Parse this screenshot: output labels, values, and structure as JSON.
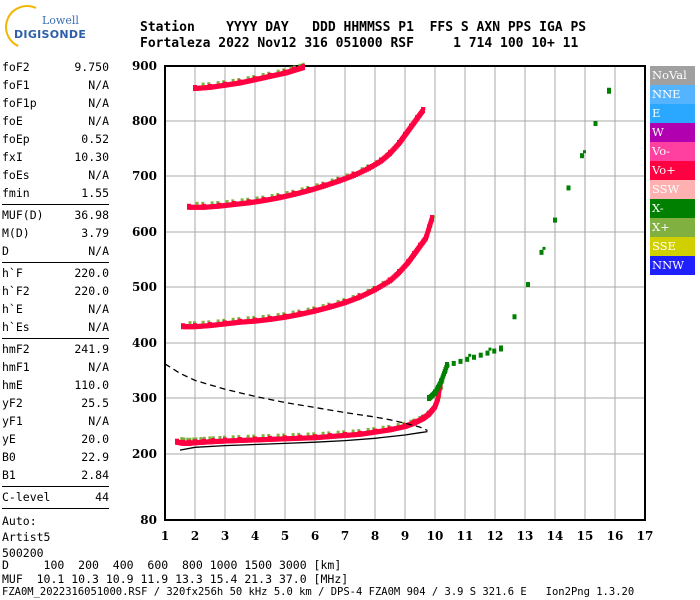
{
  "logo": {
    "line1": "Lowell",
    "line2": "DIGISONDE"
  },
  "header": {
    "labels": "Station    YYYY DAY   DDD HHMMSS P1  FFS S AXN PPS IGA PS",
    "values": "Fortaleza 2022 Nov12 316 051000 RSF     1 714 100 10+ 11"
  },
  "params_group1": [
    {
      "name": "foF2",
      "value": "9.750"
    },
    {
      "name": "foF1",
      "value": "N/A"
    },
    {
      "name": "foF1p",
      "value": "N/A"
    },
    {
      "name": "foE",
      "value": "N/A"
    },
    {
      "name": "foEp",
      "value": "0.52"
    },
    {
      "name": "fxI",
      "value": "10.30"
    },
    {
      "name": "foEs",
      "value": "N/A"
    },
    {
      "name": "fmin",
      "value": "1.55"
    }
  ],
  "params_group2": [
    {
      "name": "MUF(D)",
      "value": "36.98"
    },
    {
      "name": "M(D)",
      "value": "3.79"
    },
    {
      "name": "D",
      "value": "N/A"
    }
  ],
  "params_group3": [
    {
      "name": "h`F",
      "value": "220.0"
    },
    {
      "name": "h`F2",
      "value": "220.0"
    },
    {
      "name": "h`E",
      "value": "N/A"
    },
    {
      "name": "h`Es",
      "value": "N/A"
    }
  ],
  "params_group4": [
    {
      "name": "hmF2",
      "value": "241.9"
    },
    {
      "name": "hmF1",
      "value": "N/A"
    },
    {
      "name": "hmE",
      "value": "110.0"
    },
    {
      "name": "yF2",
      "value": "25.5"
    },
    {
      "name": "yF1",
      "value": "N/A"
    },
    {
      "name": "yE",
      "value": "20.0"
    },
    {
      "name": "B0",
      "value": "22.9"
    },
    {
      "name": "B1",
      "value": "2.84"
    }
  ],
  "params_group5": [
    {
      "name": "C-level",
      "value": "44"
    }
  ],
  "auto": {
    "line1": "Auto:",
    "line2": "Artist5",
    "line3": "500200"
  },
  "legend": [
    {
      "label": "NoVal",
      "color": "#a0a0a0"
    },
    {
      "label": "NNE",
      "color": "#55b4ff"
    },
    {
      "label": "E",
      "color": "#2aa8ff"
    },
    {
      "label": "W",
      "color": "#b000b0"
    },
    {
      "label": "Vo-",
      "color": "#ff40a0"
    },
    {
      "label": "Vo+",
      "color": "#ff0040"
    },
    {
      "label": "SSW",
      "color": "#ffb0b0"
    },
    {
      "label": "X-",
      "color": "#008000"
    },
    {
      "label": "X+",
      "color": "#80b040"
    },
    {
      "label": "SSE",
      "color": "#d0d000"
    },
    {
      "label": "NNW",
      "color": "#2020ff"
    }
  ],
  "footer": {
    "line1": "D     100  200  400  600  800 1000 1500 3000 [km]",
    "line2": "MUF  10.1 10.3 10.9 11.9 13.3 15.4 21.3 37.0 [MHz]",
    "line3": "FZA0M_2022316051000.RSF / 320fx256h 50 kHz 5.0 km / DPS-4 FZA0M 904 / 3.9 S 321.6 E   Ion2Png 1.3.20"
  },
  "chart_data": {
    "type": "scatter",
    "title": "",
    "xlabel": "",
    "ylabel": "",
    "xlim": [
      1,
      17
    ],
    "ylim": [
      80,
      900
    ],
    "xticks": [
      1,
      2,
      3,
      4,
      5,
      6,
      7,
      8,
      9,
      10,
      11,
      12,
      13,
      14,
      15,
      16,
      17
    ],
    "yticks": [
      80,
      200,
      300,
      400,
      500,
      600,
      700,
      800,
      900
    ],
    "grid": true,
    "series": [
      {
        "name": "Vo+",
        "color": "#ff0040",
        "x": [
          1.4,
          1.6,
          1.8,
          2.0,
          2.3,
          2.6,
          3.0,
          3.5,
          4.0,
          4.5,
          5.0,
          5.5,
          6.0,
          6.5,
          7.0,
          7.5,
          8.0,
          8.5,
          9.0,
          9.3,
          9.6,
          9.8,
          10.0,
          10.1,
          10.2
        ],
        "y": [
          222,
          220,
          220,
          221,
          222,
          223,
          224,
          225,
          226,
          227,
          228,
          229,
          230,
          232,
          234,
          236,
          240,
          244,
          250,
          256,
          264,
          272,
          285,
          300,
          330
        ]
      },
      {
        "name": "Vo+",
        "color": "#ff0040",
        "x": [
          1.6,
          2.0,
          2.5,
          3.0,
          3.5,
          4.0,
          4.5,
          5.0,
          5.5,
          6.0,
          6.5,
          7.0,
          7.5,
          8.0,
          8.5,
          8.8,
          9.1,
          9.3,
          9.5,
          9.7,
          9.8,
          9.9
        ],
        "y": [
          430,
          430,
          432,
          435,
          438,
          440,
          443,
          447,
          452,
          458,
          465,
          473,
          483,
          496,
          512,
          527,
          545,
          560,
          575,
          590,
          608,
          625
        ]
      },
      {
        "name": "Vo+",
        "color": "#ff0040",
        "x": [
          1.8,
          2.3,
          2.8,
          3.3,
          3.8,
          4.3,
          4.8,
          5.3,
          5.8,
          6.3,
          6.8,
          7.3,
          7.8,
          8.2,
          8.5,
          8.8,
          9.0,
          9.2,
          9.4,
          9.6
        ],
        "y": [
          645,
          645,
          647,
          650,
          653,
          657,
          662,
          668,
          675,
          683,
          692,
          702,
          715,
          728,
          742,
          760,
          775,
          790,
          805,
          820
        ]
      },
      {
        "name": "Vo+",
        "color": "#ff0040",
        "x": [
          2.0,
          2.5,
          3.0,
          3.5,
          4.0,
          4.5,
          5.0,
          5.3,
          5.6
        ],
        "y": [
          860,
          862,
          866,
          870,
          876,
          882,
          888,
          893,
          898
        ]
      },
      {
        "name": "X-",
        "color": "#008000",
        "x": [
          9.8,
          10.0,
          10.2,
          10.4,
          12.2,
          15.8
        ],
        "y": [
          300,
          310,
          330,
          360,
          390,
          855
        ]
      }
    ],
    "curves": [
      {
        "name": "profile",
        "style": "solid",
        "x": [
          1.5,
          2.0,
          3.0,
          4.0,
          5.0,
          6.0,
          7.0,
          8.0,
          8.5,
          9.0,
          9.5,
          9.75
        ],
        "y": [
          207,
          212,
          215,
          217,
          219,
          221,
          224,
          228,
          231,
          234,
          238,
          240
        ]
      },
      {
        "name": "profile",
        "style": "dashed",
        "x": [
          1.0,
          1.5,
          2.0,
          3.0,
          4.0,
          5.0,
          6.0,
          7.0,
          8.0,
          8.5,
          9.0,
          9.5,
          9.75
        ],
        "y": [
          362,
          345,
          332,
          316,
          303,
          292,
          283,
          274,
          266,
          261,
          255,
          248,
          242
        ]
      }
    ]
  }
}
